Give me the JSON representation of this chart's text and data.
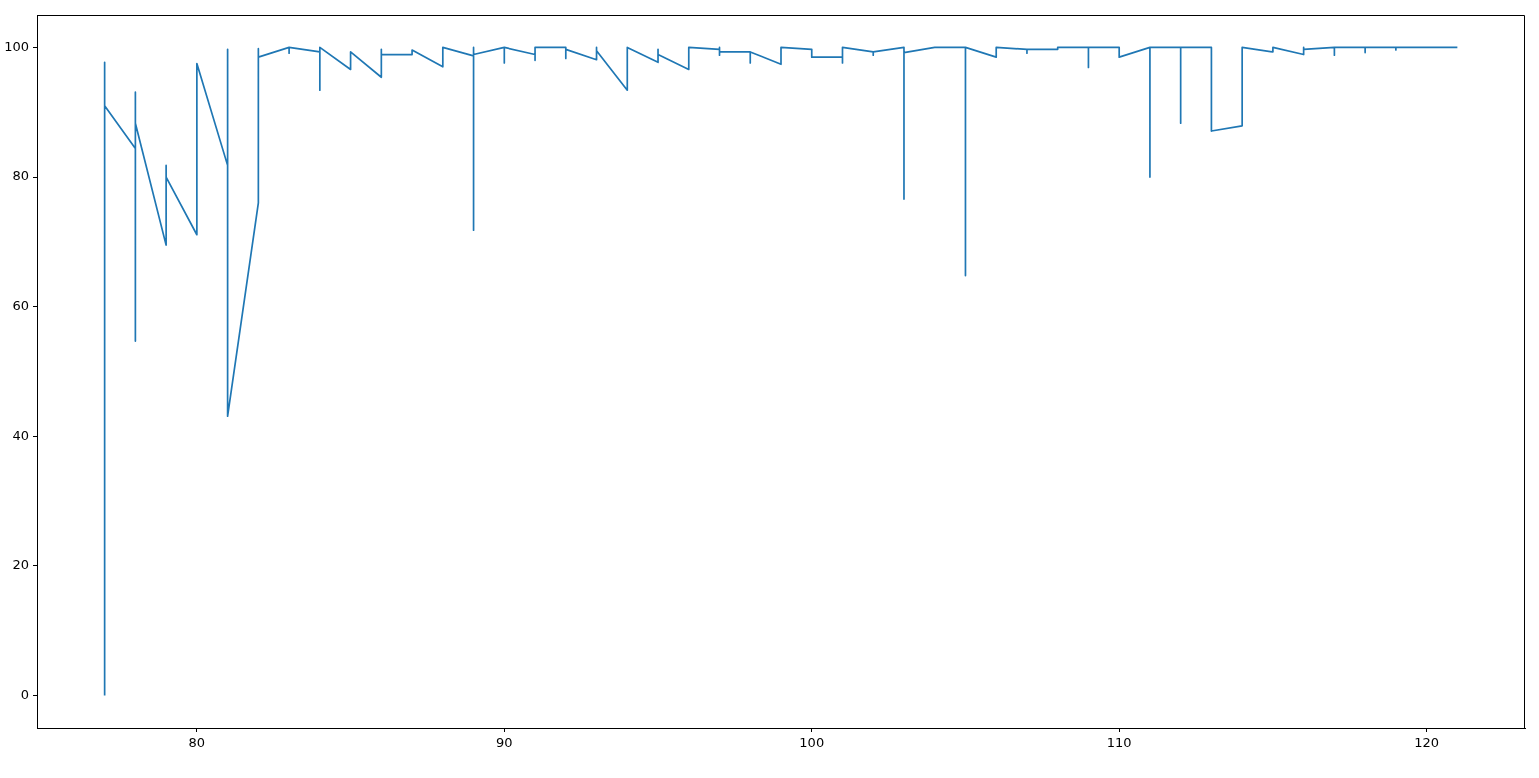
{
  "chart_data": {
    "type": "line",
    "color": "#1f77b4",
    "x": [
      77,
      77,
      77,
      78,
      78,
      78,
      78,
      79,
      79,
      79,
      80,
      80,
      81,
      81,
      81,
      82,
      82,
      82,
      83,
      83,
      83,
      84,
      84,
      84,
      85,
      85,
      86,
      86,
      86,
      87,
      87,
      88,
      88,
      89,
      89,
      89,
      89,
      90,
      90,
      90,
      91,
      91,
      91,
      92,
      92,
      92,
      93,
      93,
      93,
      94,
      94,
      95,
      95,
      95,
      96,
      96,
      97,
      97,
      97,
      97,
      98,
      98,
      98,
      99,
      99,
      100,
      100,
      101,
      101,
      101,
      102,
      102,
      102,
      103,
      103,
      103,
      104,
      104,
      105,
      105,
      105,
      106,
      106,
      107,
      107,
      107,
      108,
      108,
      109,
      109,
      109,
      110,
      110,
      111,
      111,
      111,
      112,
      112,
      112,
      113,
      113,
      114,
      114,
      115,
      115,
      116,
      116,
      116,
      117,
      117,
      117,
      118,
      118,
      118,
      119,
      119,
      119,
      120,
      121
    ],
    "values": [
      0,
      97.7,
      91,
      84.4,
      93.1,
      54.7,
      88.3,
      69.5,
      81.8,
      80.0,
      71.1,
      97.5,
      81.8,
      99.7,
      43.1,
      76.0,
      99.8,
      98.5,
      100,
      99.1,
      100,
      99.3,
      93.4,
      100,
      96.6,
      99.3,
      95.4,
      99.7,
      98.9,
      98.9,
      99.6,
      97.0,
      100,
      98.7,
      100,
      71.8,
      98.9,
      100,
      97.6,
      100,
      98.9,
      98.0,
      100,
      100,
      98.3,
      99.7,
      98.1,
      100,
      99.5,
      93.4,
      100,
      97.7,
      99.7,
      98.9,
      96.6,
      100,
      99.7,
      100,
      98.8,
      99.3,
      99.3,
      97.6,
      99.3,
      97.4,
      100,
      99.7,
      98.5,
      98.5,
      97.6,
      100,
      99.3,
      98.8,
      99.3,
      100,
      76.6,
      99.2,
      100,
      100,
      100,
      64.8,
      100,
      98.5,
      100,
      99.7,
      99.1,
      99.7,
      99.7,
      100,
      100,
      96.9,
      100,
      100,
      98.5,
      100,
      80.0,
      100,
      100,
      88.3,
      100,
      100,
      87.1,
      87.9,
      100,
      99.3,
      100,
      98.9,
      100,
      99.7,
      100,
      98.8,
      100,
      100,
      99.2,
      100,
      100,
      99.6,
      100,
      100,
      100
    ],
    "xlim": [
      74.8,
      123.2
    ],
    "ylim": [
      -5,
      105
    ],
    "xticks": [
      80,
      90,
      100,
      110,
      120
    ],
    "yticks": [
      0,
      20,
      40,
      60,
      80,
      100
    ],
    "grid": false
  }
}
